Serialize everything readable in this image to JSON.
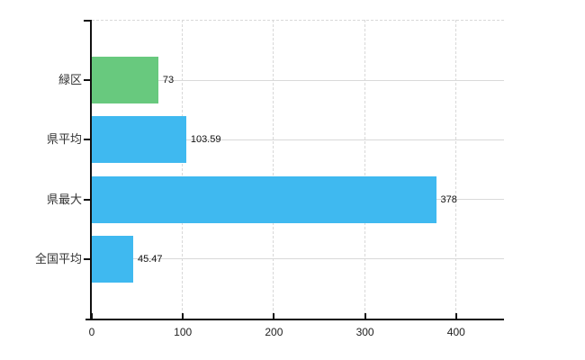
{
  "chart_data": {
    "type": "bar",
    "orientation": "horizontal",
    "title": "",
    "xlabel": "",
    "ylabel": "",
    "categories": [
      "緑区",
      "県平均",
      "県最大",
      "全国平均"
    ],
    "values": [
      73,
      103.59,
      378,
      45.47
    ],
    "value_labels": [
      "73",
      "103.59",
      "378",
      "45.47"
    ],
    "bar_colors": [
      "#68c97e",
      "#3fb9f0",
      "#3fb9f0",
      "#3fb9f0"
    ],
    "x_ticks": [
      0,
      100,
      200,
      300,
      400
    ],
    "x_tick_labels": [
      "0",
      "100",
      "200",
      "300",
      "400"
    ],
    "xlim": [
      0,
      452
    ],
    "grid": "both",
    "legend": "none"
  },
  "colors": {
    "bar_green": "#68c97e",
    "bar_blue": "#3fb9f0",
    "axis": "#111111",
    "gridline": "#d8d8d8",
    "category_text": "#333333",
    "value_text": "#111111",
    "tick_text": "#222222",
    "background": "#ffffff"
  }
}
